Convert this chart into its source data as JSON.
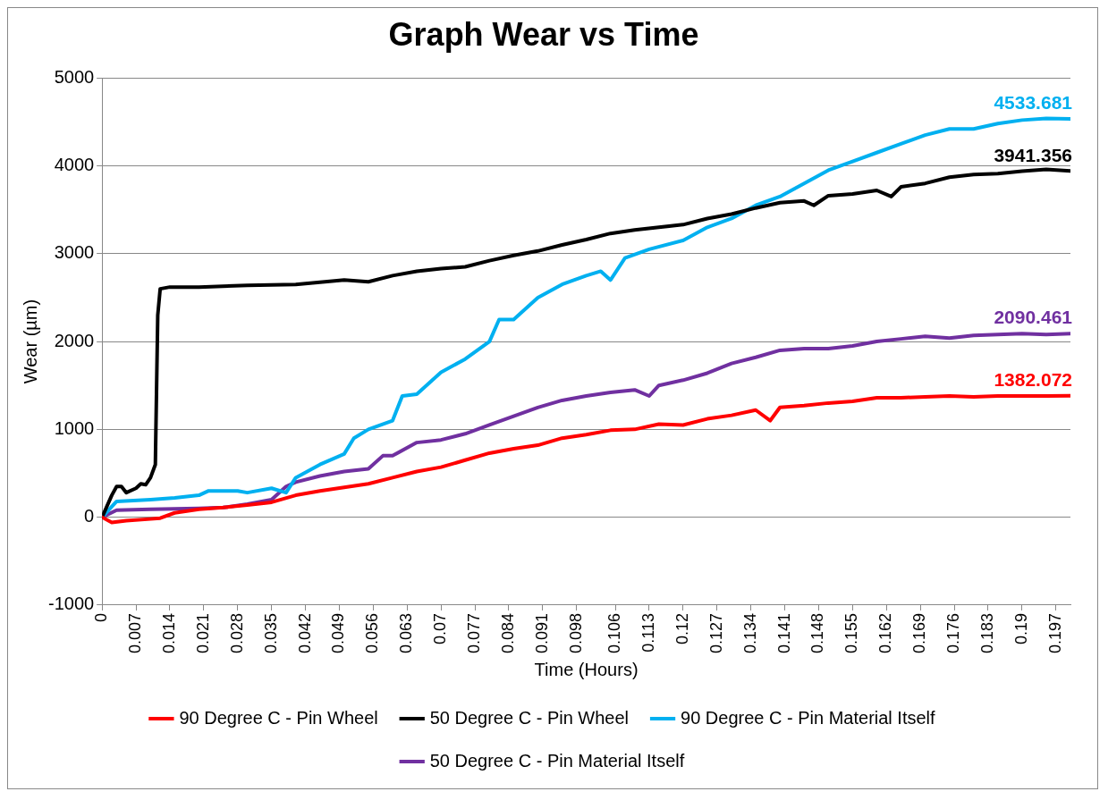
{
  "chart_data": {
    "type": "line",
    "title": "Graph Wear vs Time",
    "xlabel": "Time (Hours)",
    "ylabel": "Wear (µm)",
    "xlim": [
      0,
      0.2
    ],
    "ylim": [
      -1000,
      5000
    ],
    "yticks": [
      -1000,
      0,
      1000,
      2000,
      3000,
      4000,
      5000
    ],
    "xticks": [
      0,
      0.007,
      0.014,
      0.021,
      0.028,
      0.035,
      0.042,
      0.049,
      0.056,
      0.063,
      0.07,
      0.077,
      0.084,
      0.091,
      0.098,
      0.106,
      0.113,
      0.12,
      0.127,
      0.134,
      0.141,
      0.148,
      0.155,
      0.162,
      0.169,
      0.176,
      0.183,
      0.19,
      0.197
    ],
    "grid": "y",
    "legend": "bottom",
    "marker": "none",
    "line_style": "solid",
    "series": [
      {
        "name": "50 Degree C - Pin Material Itself",
        "color": "#7030a0",
        "x": [
          0,
          0.003,
          0.01,
          0.02,
          0.025,
          0.03,
          0.035,
          0.038,
          0.04,
          0.045,
          0.05,
          0.055,
          0.058,
          0.06,
          0.065,
          0.07,
          0.075,
          0.08,
          0.085,
          0.09,
          0.095,
          0.1,
          0.105,
          0.11,
          0.113,
          0.115,
          0.12,
          0.125,
          0.13,
          0.135,
          0.14,
          0.145,
          0.15,
          0.155,
          0.16,
          0.165,
          0.17,
          0.175,
          0.18,
          0.185,
          0.19,
          0.195,
          0.2
        ],
        "values": [
          0,
          80,
          90,
          100,
          110,
          150,
          200,
          350,
          400,
          470,
          520,
          550,
          700,
          700,
          850,
          880,
          950,
          1050,
          1150,
          1250,
          1330,
          1380,
          1420,
          1450,
          1380,
          1500,
          1560,
          1640,
          1750,
          1820,
          1900,
          1920,
          1920,
          1950,
          2000,
          2030,
          2060,
          2040,
          2070,
          2080,
          2090,
          2080,
          2090.461
        ],
        "value_labels": [
          null,
          null,
          null,
          null,
          null,
          null,
          null,
          null,
          null,
          null,
          null,
          null,
          null,
          null,
          null,
          null,
          null,
          null,
          null,
          null,
          null,
          null,
          null,
          null,
          null,
          null,
          null,
          null,
          null,
          null,
          null,
          null,
          null,
          null,
          null,
          null,
          null,
          null,
          null,
          null,
          null,
          null,
          "2090.461"
        ]
      },
      {
        "name": "90 Degree C - Pin Material Itself",
        "color": "#00b0f0",
        "x": [
          0,
          0.003,
          0.01,
          0.015,
          0.02,
          0.022,
          0.028,
          0.03,
          0.035,
          0.038,
          0.04,
          0.045,
          0.05,
          0.052,
          0.055,
          0.06,
          0.062,
          0.065,
          0.07,
          0.075,
          0.08,
          0.082,
          0.085,
          0.09,
          0.095,
          0.1,
          0.103,
          0.105,
          0.108,
          0.113,
          0.12,
          0.125,
          0.13,
          0.135,
          0.14,
          0.145,
          0.15,
          0.155,
          0.16,
          0.165,
          0.17,
          0.175,
          0.18,
          0.185,
          0.19,
          0.195,
          0.2
        ],
        "values": [
          0,
          180,
          200,
          220,
          250,
          300,
          300,
          280,
          330,
          280,
          450,
          600,
          720,
          900,
          1000,
          1100,
          1380,
          1400,
          1650,
          1800,
          2000,
          2250,
          2250,
          2500,
          2650,
          2750,
          2800,
          2700,
          2950,
          3050,
          3150,
          3300,
          3400,
          3550,
          3650,
          3800,
          3950,
          4050,
          4150,
          4250,
          4350,
          4420,
          4420,
          4480,
          4520,
          4540,
          4533.681
        ],
        "value_labels": [
          null,
          null,
          null,
          null,
          null,
          null,
          null,
          null,
          null,
          null,
          null,
          null,
          null,
          null,
          null,
          null,
          null,
          null,
          null,
          null,
          null,
          null,
          null,
          null,
          null,
          null,
          null,
          null,
          null,
          null,
          null,
          null,
          null,
          null,
          null,
          null,
          null,
          null,
          null,
          null,
          null,
          null,
          null,
          null,
          null,
          null,
          "4533.681"
        ]
      },
      {
        "name": "50 Degree C - Pin Wheel",
        "color": "#000000",
        "x": [
          0,
          0.002,
          0.003,
          0.004,
          0.005,
          0.007,
          0.008,
          0.009,
          0.01,
          0.011,
          0.0115,
          0.012,
          0.014,
          0.02,
          0.03,
          0.04,
          0.05,
          0.055,
          0.06,
          0.065,
          0.07,
          0.075,
          0.08,
          0.085,
          0.09,
          0.095,
          0.1,
          0.105,
          0.11,
          0.115,
          0.12,
          0.125,
          0.13,
          0.135,
          0.14,
          0.145,
          0.147,
          0.15,
          0.155,
          0.16,
          0.163,
          0.165,
          0.17,
          0.175,
          0.18,
          0.185,
          0.19,
          0.195,
          0.2
        ],
        "values": [
          0,
          250,
          350,
          350,
          280,
          330,
          380,
          370,
          450,
          600,
          2300,
          2600,
          2620,
          2620,
          2640,
          2650,
          2700,
          2680,
          2750,
          2800,
          2830,
          2850,
          2920,
          2980,
          3030,
          3100,
          3160,
          3230,
          3270,
          3300,
          3330,
          3400,
          3450,
          3520,
          3580,
          3600,
          3550,
          3660,
          3680,
          3720,
          3650,
          3760,
          3800,
          3870,
          3900,
          3910,
          3940,
          3960,
          3941.356
        ],
        "value_labels": [
          null,
          null,
          null,
          null,
          null,
          null,
          null,
          null,
          null,
          null,
          null,
          null,
          null,
          null,
          null,
          null,
          null,
          null,
          null,
          null,
          null,
          null,
          null,
          null,
          null,
          null,
          null,
          null,
          null,
          null,
          null,
          null,
          null,
          null,
          null,
          null,
          null,
          null,
          null,
          null,
          null,
          null,
          null,
          null,
          null,
          null,
          null,
          null,
          "3941.356"
        ]
      },
      {
        "name": "90 Degree C - Pin Wheel",
        "color": "#ff0000",
        "x": [
          0,
          0.002,
          0.005,
          0.01,
          0.012,
          0.015,
          0.02,
          0.025,
          0.03,
          0.035,
          0.04,
          0.045,
          0.05,
          0.055,
          0.06,
          0.065,
          0.07,
          0.075,
          0.08,
          0.085,
          0.09,
          0.095,
          0.1,
          0.105,
          0.11,
          0.115,
          0.12,
          0.125,
          0.13,
          0.135,
          0.138,
          0.14,
          0.145,
          0.15,
          0.155,
          0.16,
          0.165,
          0.17,
          0.175,
          0.18,
          0.185,
          0.19,
          0.195,
          0.2
        ],
        "values": [
          0,
          -60,
          -40,
          -20,
          -10,
          50,
          90,
          110,
          140,
          170,
          250,
          300,
          340,
          380,
          450,
          520,
          570,
          650,
          730,
          780,
          820,
          900,
          940,
          990,
          1000,
          1060,
          1050,
          1120,
          1160,
          1220,
          1100,
          1250,
          1270,
          1300,
          1320,
          1360,
          1360,
          1370,
          1380,
          1370,
          1380,
          1380,
          1380,
          1382.072
        ],
        "value_labels": [
          null,
          null,
          null,
          null,
          null,
          null,
          null,
          null,
          null,
          null,
          null,
          null,
          null,
          null,
          null,
          null,
          null,
          null,
          null,
          null,
          null,
          null,
          null,
          null,
          null,
          null,
          null,
          null,
          null,
          null,
          null,
          null,
          null,
          null,
          null,
          null,
          null,
          null,
          null,
          null,
          null,
          null,
          null,
          "1382.072"
        ]
      }
    ]
  }
}
